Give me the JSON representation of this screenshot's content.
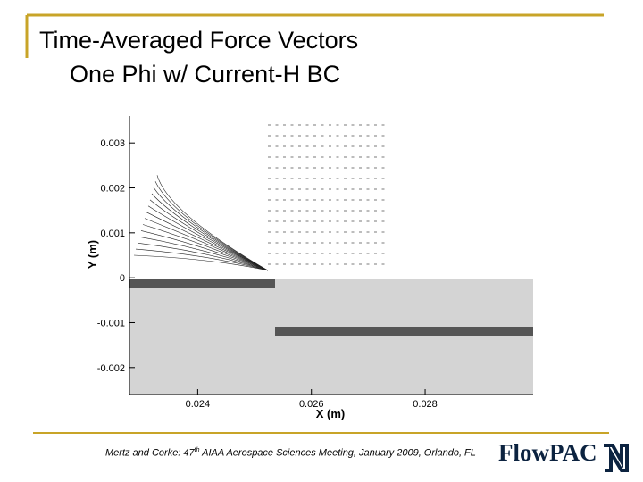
{
  "title": [
    "Time-Averaged Force Vectors",
    "One Phi w/ Current-H BC"
  ],
  "footer": [
    "Mertz and Corke: 47",
    "th",
    " AIAA Aerospace Sciences Meeting, January 2009, Orlando, FL"
  ],
  "logo": "FlowPAC",
  "chart_data": {
    "type": "vector",
    "xlabel": "X (m)",
    "ylabel": "Y (m)",
    "xlim": [
      0.0228,
      0.0299
    ],
    "xticks": [
      0.024,
      0.026,
      0.028
    ],
    "ylim": [
      -0.0026,
      0.0036
    ],
    "yticks": [
      0.003,
      0.002,
      0.001,
      0,
      -0.001,
      -0.002
    ]
  }
}
